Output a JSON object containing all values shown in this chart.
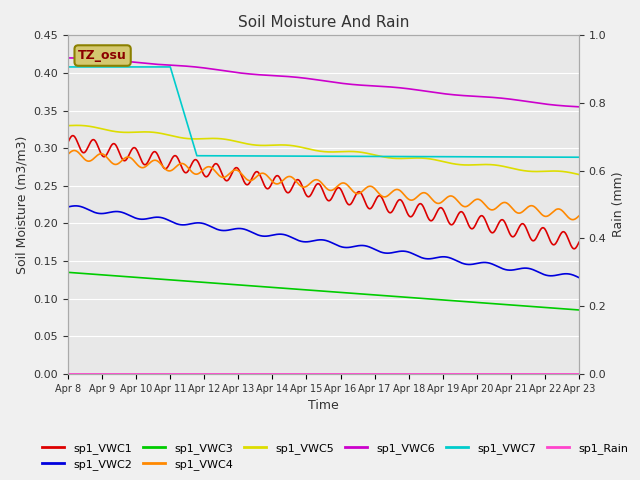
{
  "title": "Soil Moisture And Rain",
  "xlabel": "Time",
  "ylabel_left": "Soil Moisture (m3/m3)",
  "ylabel_right": "Rain (mm)",
  "ylim_left": [
    0.0,
    0.45
  ],
  "ylim_right": [
    0.0,
    1.0
  ],
  "figure_bg": "#f0f0f0",
  "plot_bg": "#e8e8e8",
  "x_ticks_labels": [
    "Apr 8",
    "Apr 9",
    "Apr 10",
    "Apr 11",
    "Apr 12",
    "Apr 13",
    "Apr 14",
    "Apr 15",
    "Apr 16",
    "Apr 17",
    "Apr 18",
    "Apr 19",
    "Apr 20",
    "Apr 21",
    "Apr 22",
    "Apr 23"
  ],
  "annotation_text": "TZ_osu",
  "annotation_bg": "#d4c870",
  "annotation_edge": "#8b8000",
  "series_colors": {
    "sp1_VWC1": "#dd0000",
    "sp1_VWC2": "#0000dd",
    "sp1_VWC3": "#00cc00",
    "sp1_VWC4": "#ff8800",
    "sp1_VWC5": "#dddd00",
    "sp1_VWC6": "#cc00cc",
    "sp1_VWC7": "#00cccc",
    "sp1_Rain": "#ff44cc"
  },
  "linewidth": 1.2,
  "yticks_left": [
    0.0,
    0.05,
    0.1,
    0.15,
    0.2,
    0.25,
    0.3,
    0.35,
    0.4,
    0.45
  ],
  "yticks_right": [
    0.0,
    0.2,
    0.4,
    0.6,
    0.8,
    1.0
  ]
}
